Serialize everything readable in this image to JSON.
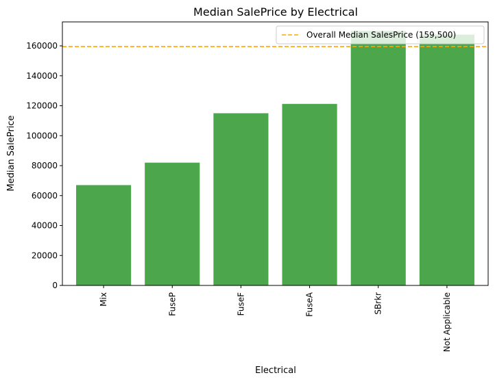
{
  "chart_data": {
    "type": "bar",
    "title": "Median SalePrice by Electrical",
    "xlabel": "Electrical",
    "ylabel": "Median SalePrice",
    "categories": [
      "Mix",
      "FuseP",
      "FuseF",
      "FuseA",
      "SBrkr",
      "Not Applicable"
    ],
    "values": [
      67000,
      82000,
      115000,
      121250,
      170000,
      167500
    ],
    "ylim": [
      0,
      176000
    ],
    "yticks": [
      0,
      20000,
      40000,
      60000,
      80000,
      100000,
      120000,
      140000,
      160000
    ],
    "bar_color": "#4ca64c",
    "grid": false,
    "reference_line": {
      "value": 159500,
      "label": "Overall Median SalesPrice (159,500)",
      "color": "#ffa500",
      "style": "dashed"
    },
    "legend": {
      "placement": "top-right",
      "entries": [
        "Overall Median SalesPrice (159,500)"
      ]
    }
  }
}
